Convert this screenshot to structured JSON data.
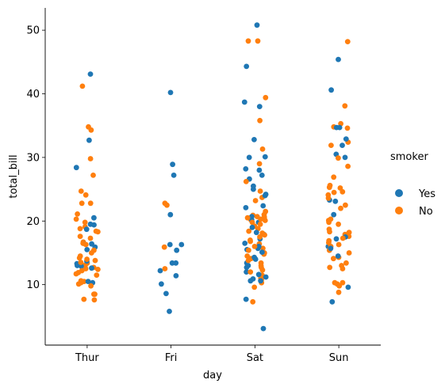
{
  "chart_data": {
    "type": "scatter",
    "subtype": "strip",
    "xlabel": "day",
    "ylabel": "total_bill",
    "categories": [
      "Thur",
      "Fri",
      "Sat",
      "Sun"
    ],
    "ylim": [
      0.5,
      53.5
    ],
    "yticks": [
      10,
      20,
      30,
      40,
      50
    ],
    "grid": false,
    "legend": {
      "title": "smoker",
      "placement": "right",
      "entries": [
        "Yes",
        "No"
      ]
    },
    "series": [
      {
        "name": "Yes",
        "color": "#1f77b4",
        "points": [
          [
            "Thur",
            43.1
          ],
          [
            "Thur",
            32.7
          ],
          [
            "Thur",
            28.4
          ],
          [
            "Thur",
            20.5
          ],
          [
            "Thur",
            19.5
          ],
          [
            "Thur",
            19.4
          ],
          [
            "Thur",
            18.7
          ],
          [
            "Thur",
            16.5
          ],
          [
            "Thur",
            16.4
          ],
          [
            "Thur",
            15.9
          ],
          [
            "Thur",
            15.5
          ],
          [
            "Thur",
            13.7
          ],
          [
            "Thur",
            13.3
          ],
          [
            "Thur",
            13.0
          ],
          [
            "Thur",
            12.9
          ],
          [
            "Thur",
            12.6
          ],
          [
            "Thur",
            10.3
          ],
          [
            "Thur",
            10.5
          ],
          [
            "Fri",
            40.2
          ],
          [
            "Fri",
            28.9
          ],
          [
            "Fri",
            27.2
          ],
          [
            "Fri",
            21.0
          ],
          [
            "Fri",
            16.3
          ],
          [
            "Fri",
            16.3
          ],
          [
            "Fri",
            15.4
          ],
          [
            "Fri",
            13.4
          ],
          [
            "Fri",
            13.4
          ],
          [
            "Fri",
            12.2
          ],
          [
            "Fri",
            11.4
          ],
          [
            "Fri",
            10.1
          ],
          [
            "Fri",
            8.6
          ],
          [
            "Fri",
            5.8
          ],
          [
            "Sat",
            50.8
          ],
          [
            "Sat",
            44.3
          ],
          [
            "Sat",
            38.7
          ],
          [
            "Sat",
            38.0
          ],
          [
            "Sat",
            32.8
          ],
          [
            "Sat",
            30.1
          ],
          [
            "Sat",
            30.0
          ],
          [
            "Sat",
            28.2
          ],
          [
            "Sat",
            28.0
          ],
          [
            "Sat",
            27.2
          ],
          [
            "Sat",
            26.6
          ],
          [
            "Sat",
            25.5
          ],
          [
            "Sat",
            25.0
          ],
          [
            "Sat",
            24.2
          ],
          [
            "Sat",
            24.0
          ],
          [
            "Sat",
            22.4
          ],
          [
            "Sat",
            22.1
          ],
          [
            "Sat",
            20.7
          ],
          [
            "Sat",
            20.2
          ],
          [
            "Sat",
            19.8
          ],
          [
            "Sat",
            19.0
          ],
          [
            "Sat",
            18.2
          ],
          [
            "Sat",
            17.9
          ],
          [
            "Sat",
            17.2
          ],
          [
            "Sat",
            16.5
          ],
          [
            "Sat",
            16.0
          ],
          [
            "Sat",
            15.7
          ],
          [
            "Sat",
            15.5
          ],
          [
            "Sat",
            15.1
          ],
          [
            "Sat",
            14.3
          ],
          [
            "Sat",
            14.0
          ],
          [
            "Sat",
            13.4
          ],
          [
            "Sat",
            13.0
          ],
          [
            "Sat",
            12.7
          ],
          [
            "Sat",
            12.0
          ],
          [
            "Sat",
            11.6
          ],
          [
            "Sat",
            11.2
          ],
          [
            "Sat",
            10.9
          ],
          [
            "Sat",
            10.6
          ],
          [
            "Sat",
            10.6
          ],
          [
            "Sat",
            7.7
          ],
          [
            "Sat",
            3.1
          ],
          [
            "Sun",
            45.4
          ],
          [
            "Sun",
            40.6
          ],
          [
            "Sun",
            34.7
          ],
          [
            "Sun",
            34.7
          ],
          [
            "Sun",
            32.9
          ],
          [
            "Sun",
            31.9
          ],
          [
            "Sun",
            30.5
          ],
          [
            "Sun",
            30.0
          ],
          [
            "Sun",
            23.3
          ],
          [
            "Sun",
            23.1
          ],
          [
            "Sun",
            21.0
          ],
          [
            "Sun",
            17.5
          ],
          [
            "Sun",
            17.2
          ],
          [
            "Sun",
            16.0
          ],
          [
            "Sun",
            15.7
          ],
          [
            "Sun",
            14.5
          ],
          [
            "Sun",
            9.6
          ],
          [
            "Sun",
            7.3
          ]
        ]
      },
      {
        "name": "No",
        "color": "#ff7f0e",
        "points": [
          [
            "Thur",
            41.2
          ],
          [
            "Thur",
            34.8
          ],
          [
            "Thur",
            34.3
          ],
          [
            "Thur",
            29.8
          ],
          [
            "Thur",
            27.2
          ],
          [
            "Thur",
            24.7
          ],
          [
            "Thur",
            24.1
          ],
          [
            "Thur",
            22.8
          ],
          [
            "Thur",
            22.8
          ],
          [
            "Thur",
            21.1
          ],
          [
            "Thur",
            20.3
          ],
          [
            "Thur",
            19.8
          ],
          [
            "Thur",
            19.1
          ],
          [
            "Thur",
            18.8
          ],
          [
            "Thur",
            18.4
          ],
          [
            "Thur",
            18.3
          ],
          [
            "Thur",
            17.6
          ],
          [
            "Thur",
            17.3
          ],
          [
            "Thur",
            16.7
          ],
          [
            "Thur",
            16.5
          ],
          [
            "Thur",
            16.3
          ],
          [
            "Thur",
            15.4
          ],
          [
            "Thur",
            15.0
          ],
          [
            "Thur",
            14.5
          ],
          [
            "Thur",
            14.2
          ],
          [
            "Thur",
            14.0
          ],
          [
            "Thur",
            13.8
          ],
          [
            "Thur",
            13.5
          ],
          [
            "Thur",
            13.4
          ],
          [
            "Thur",
            13.1
          ],
          [
            "Thur",
            12.7
          ],
          [
            "Thur",
            12.5
          ],
          [
            "Thur",
            12.4
          ],
          [
            "Thur",
            12.2
          ],
          [
            "Thur",
            11.9
          ],
          [
            "Thur",
            11.7
          ],
          [
            "Thur",
            11.5
          ],
          [
            "Thur",
            10.6
          ],
          [
            "Thur",
            10.5
          ],
          [
            "Thur",
            10.3
          ],
          [
            "Thur",
            10.1
          ],
          [
            "Thur",
            9.8
          ],
          [
            "Thur",
            8.5
          ],
          [
            "Thur",
            8.5
          ],
          [
            "Thur",
            7.7
          ],
          [
            "Thur",
            7.6
          ],
          [
            "Fri",
            22.8
          ],
          [
            "Fri",
            22.5
          ],
          [
            "Fri",
            15.9
          ],
          [
            "Fri",
            12.5
          ],
          [
            "Sat",
            48.3
          ],
          [
            "Sat",
            48.3
          ],
          [
            "Sat",
            39.4
          ],
          [
            "Sat",
            35.8
          ],
          [
            "Sat",
            31.3
          ],
          [
            "Sat",
            29.0
          ],
          [
            "Sat",
            26.2
          ],
          [
            "Sat",
            24.7
          ],
          [
            "Sat",
            23.7
          ],
          [
            "Sat",
            23.2
          ],
          [
            "Sat",
            21.5
          ],
          [
            "Sat",
            21.0
          ],
          [
            "Sat",
            20.9
          ],
          [
            "Sat",
            20.7
          ],
          [
            "Sat",
            20.6
          ],
          [
            "Sat",
            20.5
          ],
          [
            "Sat",
            20.3
          ],
          [
            "Sat",
            20.2
          ],
          [
            "Sat",
            20.1
          ],
          [
            "Sat",
            19.8
          ],
          [
            "Sat",
            19.5
          ],
          [
            "Sat",
            19.2
          ],
          [
            "Sat",
            18.8
          ],
          [
            "Sat",
            18.4
          ],
          [
            "Sat",
            18.1
          ],
          [
            "Sat",
            17.8
          ],
          [
            "Sat",
            17.5
          ],
          [
            "Sat",
            17.0
          ],
          [
            "Sat",
            16.8
          ],
          [
            "Sat",
            16.4
          ],
          [
            "Sat",
            16.0
          ],
          [
            "Sat",
            15.7
          ],
          [
            "Sat",
            15.4
          ],
          [
            "Sat",
            15.0
          ],
          [
            "Sat",
            14.8
          ],
          [
            "Sat",
            14.5
          ],
          [
            "Sat",
            14.1
          ],
          [
            "Sat",
            13.8
          ],
          [
            "Sat",
            13.4
          ],
          [
            "Sat",
            13.0
          ],
          [
            "Sat",
            12.7
          ],
          [
            "Sat",
            12.3
          ],
          [
            "Sat",
            12.0
          ],
          [
            "Sat",
            11.5
          ],
          [
            "Sat",
            11.0
          ],
          [
            "Sat",
            10.8
          ],
          [
            "Sat",
            10.3
          ],
          [
            "Sat",
            9.6
          ],
          [
            "Sat",
            7.3
          ],
          [
            "Sun",
            48.2
          ],
          [
            "Sun",
            38.1
          ],
          [
            "Sun",
            35.3
          ],
          [
            "Sun",
            34.8
          ],
          [
            "Sun",
            34.6
          ],
          [
            "Sun",
            32.4
          ],
          [
            "Sun",
            31.9
          ],
          [
            "Sun",
            29.9
          ],
          [
            "Sun",
            28.6
          ],
          [
            "Sun",
            26.9
          ],
          [
            "Sun",
            25.6
          ],
          [
            "Sun",
            25.3
          ],
          [
            "Sun",
            25.2
          ],
          [
            "Sun",
            24.6
          ],
          [
            "Sun",
            24.5
          ],
          [
            "Sun",
            24.1
          ],
          [
            "Sun",
            23.6
          ],
          [
            "Sun",
            22.5
          ],
          [
            "Sun",
            22.0
          ],
          [
            "Sun",
            20.3
          ],
          [
            "Sun",
            20.1
          ],
          [
            "Sun",
            19.8
          ],
          [
            "Sun",
            19.5
          ],
          [
            "Sun",
            18.7
          ],
          [
            "Sun",
            18.3
          ],
          [
            "Sun",
            18.2
          ],
          [
            "Sun",
            17.9
          ],
          [
            "Sun",
            17.6
          ],
          [
            "Sun",
            17.3
          ],
          [
            "Sun",
            16.9
          ],
          [
            "Sun",
            16.6
          ],
          [
            "Sun",
            16.3
          ],
          [
            "Sun",
            16.0
          ],
          [
            "Sun",
            15.7
          ],
          [
            "Sun",
            15.4
          ],
          [
            "Sun",
            15.0
          ],
          [
            "Sun",
            14.3
          ],
          [
            "Sun",
            14.1
          ],
          [
            "Sun",
            13.4
          ],
          [
            "Sun",
            13.0
          ],
          [
            "Sun",
            12.7
          ],
          [
            "Sun",
            12.5
          ],
          [
            "Sun",
            10.3
          ],
          [
            "Sun",
            10.3
          ],
          [
            "Sun",
            10.1
          ],
          [
            "Sun",
            9.8
          ],
          [
            "Sun",
            8.8
          ]
        ]
      }
    ]
  }
}
